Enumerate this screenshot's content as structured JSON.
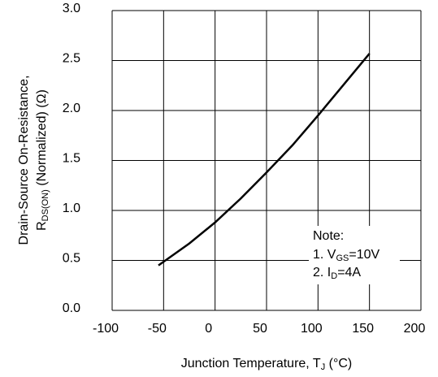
{
  "chart_data": {
    "type": "line",
    "ylabel": {
      "lines": [
        [
          "Drain-Source On-Resistance,"
        ],
        [
          "R",
          "DS(ON)",
          " (Normalized) (Ω)"
        ]
      ]
    },
    "xlabel": [
      "Junction Temperature, T",
      "J",
      " (°C)"
    ],
    "x": [
      -55,
      -25,
      0,
      25,
      50,
      75,
      100,
      125,
      150
    ],
    "series": [
      {
        "name": "RDS(ON)",
        "color": "#000000",
        "values": [
          0.45,
          0.67,
          0.88,
          1.12,
          1.38,
          1.65,
          1.95,
          2.26,
          2.57
        ]
      }
    ],
    "xlim": [
      -100,
      200
    ],
    "xticks": [
      -100,
      -50,
      0,
      50,
      100,
      150,
      200
    ],
    "ylim": [
      0,
      3
    ],
    "yticks": [
      {
        "value": 0,
        "label": "0.0"
      },
      0.5,
      {
        "value": 1,
        "label": "1.0"
      },
      1.5,
      {
        "value": 2,
        "label": "2.0"
      },
      2.5,
      {
        "value": 3,
        "label": "3.0"
      }
    ],
    "grid": true,
    "note": {
      "title": "Note:",
      "lines": [
        [
          "1. V",
          "GS",
          "=10V"
        ],
        [
          "2. I",
          "D",
          "=4A"
        ]
      ]
    }
  }
}
